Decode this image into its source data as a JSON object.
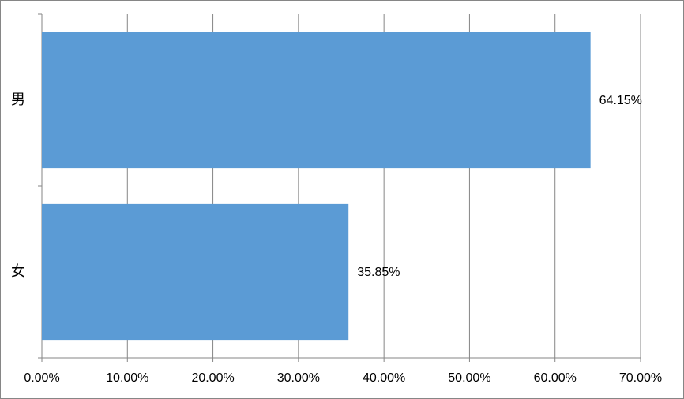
{
  "chart_data": {
    "type": "hbar",
    "categories": [
      "男",
      "女"
    ],
    "values": [
      64.15,
      35.85
    ],
    "value_labels": [
      "64.15%",
      "35.85%"
    ],
    "color": "#5b9bd5",
    "xlim": [
      0,
      70
    ],
    "xticks": [
      {
        "value": 0,
        "label": "0.00%"
      },
      {
        "value": 10,
        "label": "10.00%"
      },
      {
        "value": 20,
        "label": "20.00%"
      },
      {
        "value": 30,
        "label": "30.00%"
      },
      {
        "value": 40,
        "label": "40.00%"
      },
      {
        "value": 50,
        "label": "50.00%"
      },
      {
        "value": 60,
        "label": "60.00%"
      },
      {
        "value": 70,
        "label": "70.00%"
      }
    ],
    "grid": true
  }
}
